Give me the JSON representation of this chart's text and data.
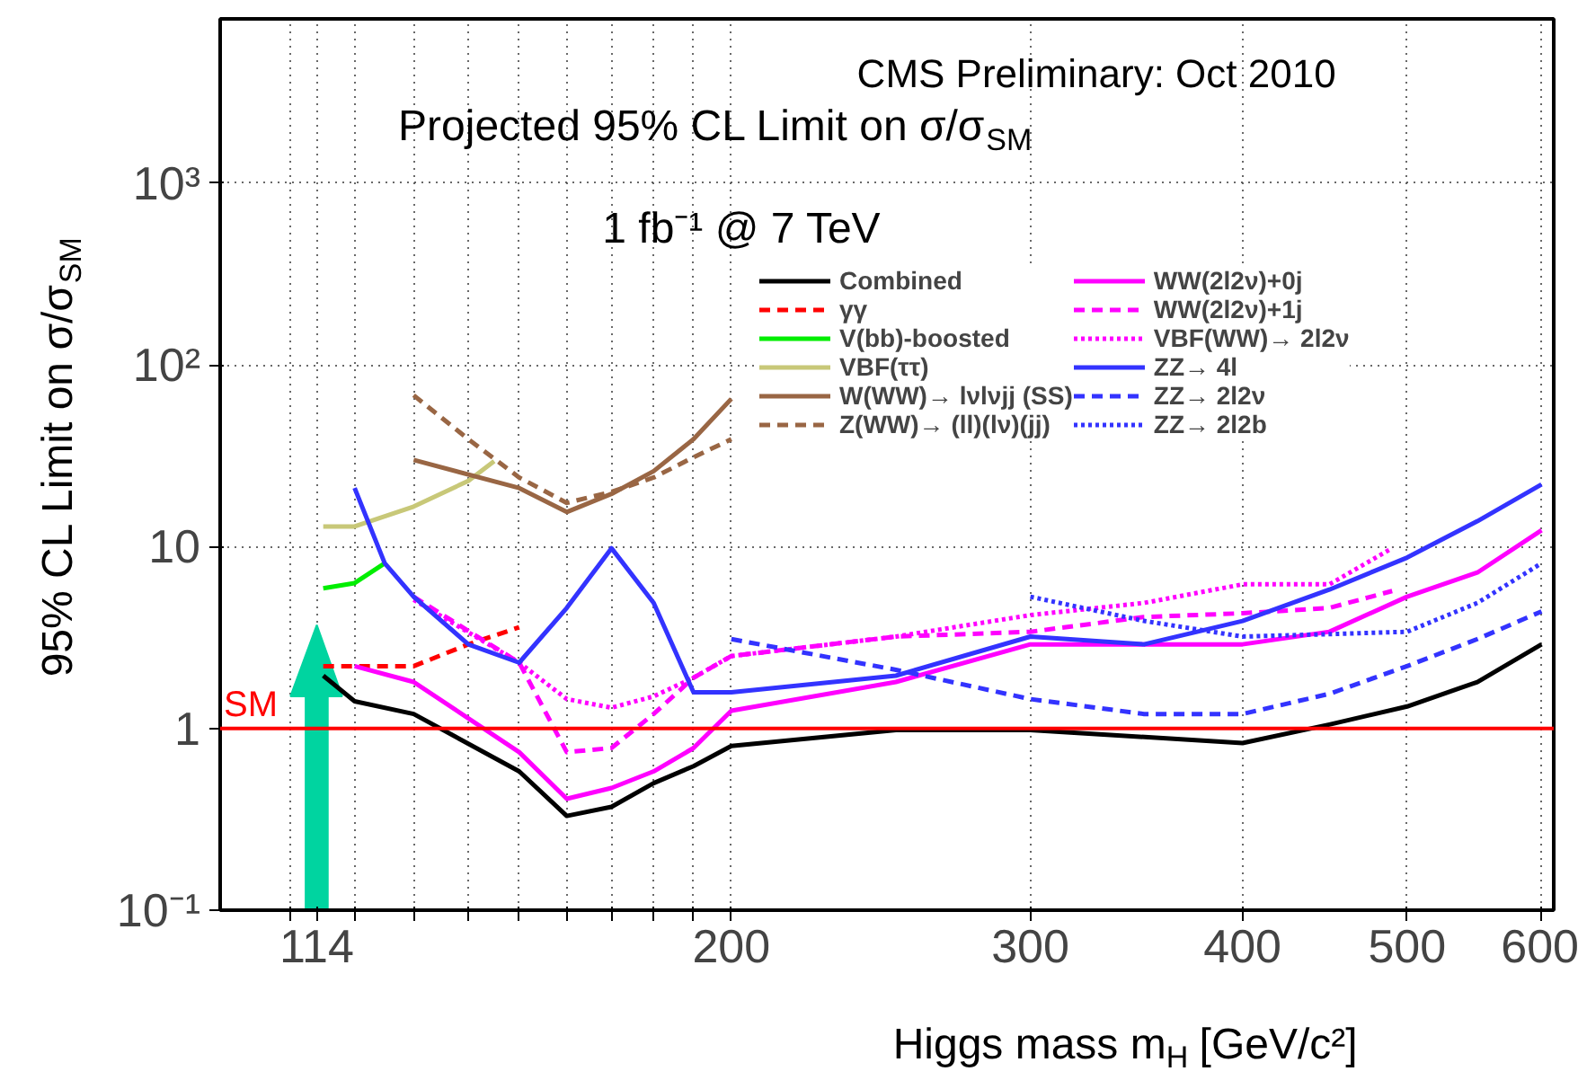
{
  "chart_data": {
    "type": "line",
    "xlabel": "Higgs mass m$_{H}$ [GeV/c²]",
    "ylabel": "95% CL Limit on σ/σ$_{SM}$",
    "annotations": [
      "CMS Preliminary: Oct 2010",
      "Projected 95% CL Limit on σ/σ$_{SM}$",
      "1 fb⁻¹ @ 7 TeV"
    ],
    "log": "xy",
    "grid": true,
    "legend": "top right",
    "line_style": "solid",
    "xlim": [
      100,
      610
    ],
    "ylim": [
      0.1,
      8000
    ],
    "xticks": [
      {
        "value": 110,
        "label": null
      },
      114,
      {
        "value": 120,
        "label": null
      },
      {
        "value": 130,
        "label": null
      },
      {
        "value": 140,
        "label": null
      },
      {
        "value": 150,
        "label": null
      },
      {
        "value": 160,
        "label": null
      },
      {
        "value": 170,
        "label": null
      },
      {
        "value": 180,
        "label": null
      },
      {
        "value": 190,
        "label": null
      },
      200,
      300,
      400,
      500,
      600
    ],
    "yticks": [
      {
        "value": 0.1,
        "label": "10⁻¹"
      },
      1,
      10,
      {
        "value": 100,
        "label": "10²"
      },
      {
        "value": 1000,
        "label": "10³"
      }
    ],
    "ref_lines": [
      {
        "axis": "y",
        "value": 1,
        "label": "SM",
        "color": "#ff0000"
      }
    ],
    "series": [
      {
        "name": "Combined",
        "color": "#000000",
        "x": [
          115,
          120,
          130,
          150,
          160,
          170,
          180,
          190,
          200,
          250,
          300,
          400,
          450,
          500,
          550,
          600
        ],
        "values": [
          1.95,
          1.41,
          1.2,
          0.58,
          0.33,
          0.37,
          0.5,
          0.62,
          0.8,
          0.98,
          0.98,
          0.83,
          1.05,
          1.32,
          1.8,
          2.9
        ]
      },
      {
        "name": "γγ",
        "color": "#ff0000",
        "line_style": "dashed",
        "x": [
          115,
          120,
          130,
          140,
          150
        ],
        "values": [
          2.2,
          2.2,
          2.2,
          2.9,
          3.6
        ]
      },
      {
        "name": "V(bb)-boosted",
        "color": "#00ee00",
        "x": [
          115,
          120,
          125
        ],
        "values": [
          5.9,
          6.3,
          8.1
        ]
      },
      {
        "name": "VBF(ττ)",
        "color": "#c8c878",
        "x": [
          115,
          120,
          130,
          140,
          145
        ],
        "values": [
          12.9,
          12.9,
          16.6,
          23,
          29.5
        ]
      },
      {
        "name": "W(WW)→ lνlνjj (SS)",
        "color": "#996644",
        "x": [
          130,
          150,
          160,
          170,
          180,
          190,
          200
        ],
        "values": [
          30,
          21,
          15.5,
          19.5,
          26,
          39,
          65
        ]
      },
      {
        "name": "Z(WW)→ (ll)(lν)(jj)",
        "color": "#996644",
        "line_style": "dashed",
        "x": [
          130,
          140,
          150,
          160,
          170,
          180,
          190,
          200
        ],
        "values": [
          68,
          39,
          24,
          17.4,
          20,
          24,
          31,
          39
        ]
      },
      {
        "name": "WW(2l2ν)+0j",
        "color": "#ff00ff",
        "x": [
          120,
          130,
          150,
          160,
          170,
          180,
          190,
          200,
          250,
          300,
          400,
          450,
          500,
          550,
          600
        ],
        "values": [
          2.2,
          1.8,
          0.74,
          0.41,
          0.47,
          0.58,
          0.78,
          1.25,
          1.8,
          2.9,
          2.9,
          3.4,
          5.3,
          7.2,
          12.3
        ]
      },
      {
        "name": "WW(2l2ν)+1j",
        "color": "#ff00ff",
        "line_style": "dashed",
        "x": [
          130,
          150,
          160,
          170,
          180,
          190,
          200,
          250,
          300,
          350,
          400,
          450,
          490
        ],
        "values": [
          5.3,
          2.3,
          0.74,
          0.78,
          1.2,
          1.9,
          2.5,
          3.2,
          3.4,
          4.1,
          4.3,
          4.6,
          5.7
        ]
      },
      {
        "name": "VBF(WW)→ 2l2ν",
        "color": "#ff00ff",
        "line_style": "dotted",
        "x": [
          130,
          150,
          160,
          170,
          180,
          190,
          200,
          250,
          300,
          350,
          400,
          450,
          490
        ],
        "values": [
          5.1,
          2.3,
          1.45,
          1.3,
          1.5,
          1.9,
          2.5,
          3.2,
          4.2,
          4.9,
          6.2,
          6.2,
          9.8
        ]
      },
      {
        "name": "ZZ→ 4l",
        "color": "#3333ff",
        "x": [
          120,
          125,
          130,
          140,
          150,
          160,
          170,
          180,
          190,
          200,
          250,
          300,
          350,
          400,
          450,
          500,
          550,
          600
        ],
        "values": [
          21,
          8.1,
          5.3,
          2.9,
          2.3,
          4.6,
          9.8,
          4.9,
          1.58,
          1.58,
          1.95,
          3.2,
          2.9,
          3.9,
          5.8,
          8.7,
          13.8,
          22
        ]
      },
      {
        "name": "ZZ→ 2l2ν",
        "color": "#3333ff",
        "line_style": "dashed",
        "x": [
          200,
          250,
          300,
          350,
          400,
          450,
          500,
          550,
          600
        ],
        "values": [
          3.1,
          2.1,
          1.45,
          1.2,
          1.2,
          1.55,
          2.2,
          3.1,
          4.4
        ]
      },
      {
        "name": "ZZ→ 2l2b",
        "color": "#3333ff",
        "line_style": "dotted",
        "x": [
          300,
          350,
          400,
          450,
          500,
          550,
          600
        ],
        "values": [
          5.3,
          3.9,
          3.2,
          3.3,
          3.4,
          4.9,
          8.1
        ]
      }
    ]
  }
}
